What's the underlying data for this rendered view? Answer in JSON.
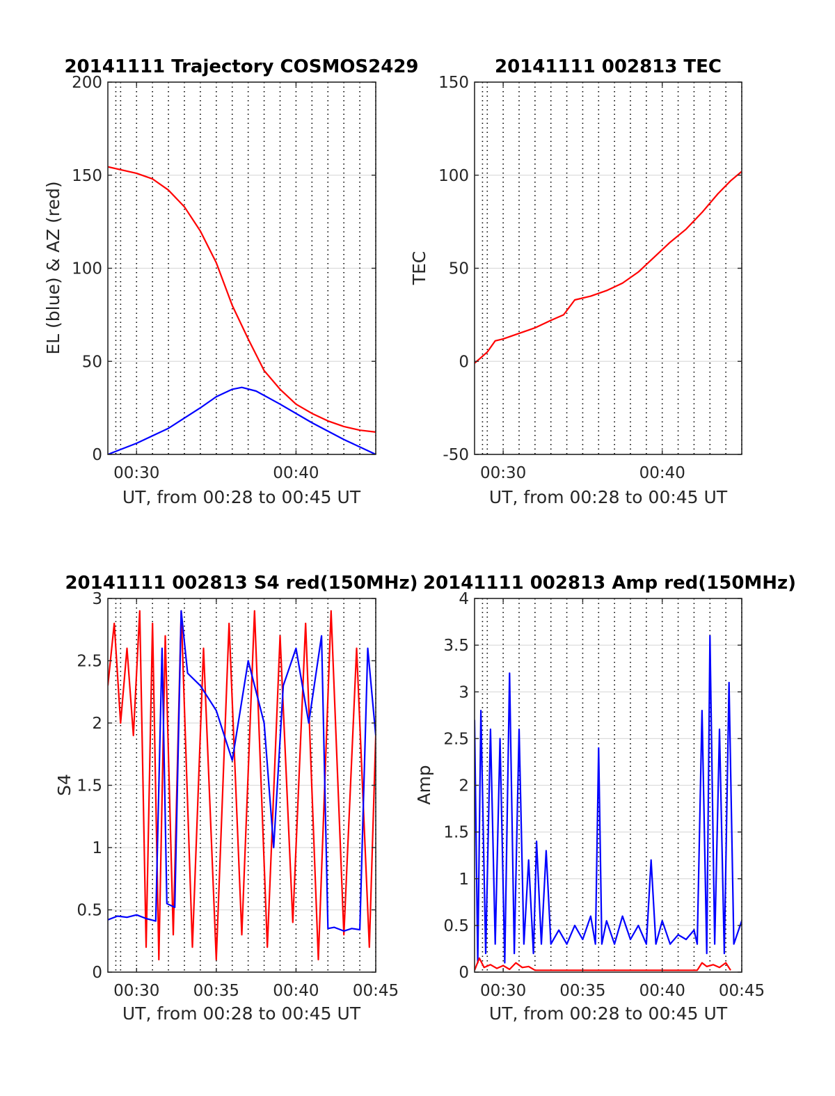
{
  "colors": {
    "blue": "#0000ff",
    "red": "#ff0000",
    "axis": "#262626",
    "grid": "#dcdcdc"
  },
  "chart_data": [
    {
      "type": "line",
      "title": "20141111 Trajectory COSMOS2429",
      "xlabel": "UT, from 00:28 to 00:45 UT",
      "ylabel": "EL (blue) & AZ (red)",
      "xlim": [
        28.2,
        45.0
      ],
      "ylim": [
        0,
        200
      ],
      "xticks": [
        30,
        40
      ],
      "xticklabels": [
        "00:30",
        "00:40"
      ],
      "yticks": [
        0,
        50,
        100,
        150,
        200
      ],
      "yticklabels": [
        "0",
        "50",
        "100",
        "150",
        "200"
      ],
      "grid": "on",
      "series": [
        {
          "color": "blue",
          "x": [
            28.2,
            30,
            32,
            34,
            35,
            36,
            36.6,
            37.5,
            39,
            41,
            43,
            45
          ],
          "values": [
            0,
            6,
            14,
            25,
            31,
            35,
            36,
            34,
            27,
            17,
            8,
            0
          ]
        },
        {
          "color": "red",
          "x": [
            28.2,
            30,
            31,
            32,
            33,
            34,
            35,
            36,
            37,
            38,
            39,
            40,
            41,
            42,
            43,
            44,
            45
          ],
          "values": [
            154.5,
            151,
            148,
            142,
            133,
            120,
            103,
            80,
            62,
            45,
            35,
            27,
            22,
            18,
            15,
            13,
            12
          ]
        }
      ]
    },
    {
      "type": "line",
      "title": "20141111 002813 TEC",
      "xlabel": "UT, from 00:28 to 00:45 UT",
      "ylabel": "TEC",
      "xlim": [
        28.2,
        45.0
      ],
      "ylim": [
        -50,
        150
      ],
      "xticks": [
        30,
        40
      ],
      "xticklabels": [
        "00:30",
        "00:40"
      ],
      "yticks": [
        -50,
        0,
        50,
        100,
        150
      ],
      "yticklabels": [
        "-50",
        "0",
        "50",
        "100",
        "150"
      ],
      "grid": "on",
      "series": [
        {
          "color": "red",
          "x": [
            28.2,
            29,
            29.5,
            30,
            31,
            32,
            33,
            33.8,
            34.5,
            35.5,
            36.5,
            37.5,
            38.5,
            39.5,
            40.5,
            41.5,
            42.5,
            43.5,
            44.3,
            45
          ],
          "values": [
            -1,
            5,
            11,
            12,
            15,
            18,
            22,
            25,
            33,
            35,
            38,
            42,
            48,
            56,
            64,
            71,
            80,
            90,
            97,
            102
          ]
        }
      ]
    },
    {
      "type": "line",
      "title": "20141111 002813 S4 red(150MHz)",
      "xlabel": "UT, from 00:28 to 00:45 UT",
      "ylabel": "S4",
      "xlim": [
        28.2,
        45.0
      ],
      "ylim": [
        0,
        3
      ],
      "xticks": [
        30,
        35,
        40,
        45
      ],
      "xticklabels": [
        "00:30",
        "00:35",
        "00:40",
        "00:45"
      ],
      "yticks": [
        0,
        0.5,
        1,
        1.5,
        2,
        2.5,
        3
      ],
      "yticklabels": [
        "0",
        "0.5",
        "1",
        "1.5",
        "2",
        "2.5",
        "3"
      ],
      "grid": "on",
      "series": [
        {
          "color": "red",
          "x": [
            28.2,
            28.6,
            29,
            29.4,
            29.8,
            30.2,
            30.6,
            31,
            31.4,
            31.8,
            32.3,
            32.8,
            33.5,
            34.2,
            35,
            35.8,
            36.6,
            37.4,
            38.2,
            39,
            39.8,
            40.6,
            41.4,
            42.2,
            43,
            43.8,
            44.6,
            45
          ],
          "values": [
            2.3,
            2.8,
            2.0,
            2.6,
            1.9,
            2.9,
            0.2,
            2.8,
            0.1,
            2.7,
            0.3,
            2.9,
            0.2,
            2.6,
            0.1,
            2.8,
            0.3,
            2.9,
            0.2,
            2.7,
            0.4,
            2.8,
            0.1,
            2.9,
            0.3,
            2.6,
            0.2,
            1.9
          ]
        },
        {
          "color": "blue",
          "x": [
            28.2,
            28.8,
            29.4,
            30,
            30.6,
            31.2,
            31.6,
            31.9,
            32.4,
            32.8,
            33.2,
            34,
            35,
            36,
            37,
            38,
            38.6,
            39.2,
            40,
            40.8,
            41.6,
            42,
            42.4,
            43,
            43.5,
            44,
            44.5,
            45
          ],
          "values": [
            0.42,
            0.45,
            0.44,
            0.46,
            0.43,
            0.41,
            2.6,
            0.55,
            0.52,
            2.9,
            2.4,
            2.3,
            2.1,
            1.7,
            2.5,
            2.0,
            1.0,
            2.3,
            2.6,
            2.0,
            2.7,
            0.35,
            0.36,
            0.33,
            0.35,
            0.34,
            2.6,
            1.9
          ]
        }
      ]
    },
    {
      "type": "line",
      "title": "20141111 002813 Amp red(150MHz)",
      "xlabel": "UT, from 00:28 to 00:45 UT",
      "ylabel": "Amp",
      "xlim": [
        28.2,
        45.0
      ],
      "ylim": [
        0,
        4
      ],
      "xticks": [
        30,
        35,
        40,
        45
      ],
      "xticklabels": [
        "00:30",
        "00:35",
        "00:40",
        "00:45"
      ],
      "yticks": [
        0,
        0.5,
        1,
        1.5,
        2,
        2.5,
        3,
        3.5,
        4
      ],
      "yticklabels": [
        "0",
        "0.5",
        "1",
        "1.5",
        "2",
        "2.5",
        "3",
        "3.5",
        "4"
      ],
      "grid": "on",
      "series": [
        {
          "color": "blue",
          "x": [
            28.2,
            28.4,
            28.6,
            28.9,
            29.2,
            29.5,
            29.8,
            30.1,
            30.4,
            30.7,
            31.0,
            31.3,
            31.6,
            31.9,
            32.1,
            32.4,
            32.7,
            33.0,
            33.5,
            34.0,
            34.5,
            35.0,
            35.5,
            35.8,
            36.0,
            36.2,
            36.5,
            37.0,
            37.5,
            38.0,
            38.5,
            39.0,
            39.3,
            39.6,
            40.0,
            40.5,
            41.0,
            41.5,
            42.0,
            42.2,
            42.5,
            42.8,
            43.0,
            43.3,
            43.6,
            43.9,
            44.2,
            44.5,
            45.0
          ],
          "values": [
            2.7,
            0.1,
            2.8,
            0.2,
            2.6,
            0.3,
            2.5,
            0.1,
            3.2,
            0.2,
            2.6,
            0.3,
            1.2,
            0.2,
            1.4,
            0.3,
            1.3,
            0.3,
            0.45,
            0.3,
            0.5,
            0.35,
            0.6,
            0.3,
            2.4,
            0.3,
            0.55,
            0.3,
            0.6,
            0.35,
            0.5,
            0.3,
            1.2,
            0.3,
            0.55,
            0.3,
            0.4,
            0.35,
            0.45,
            0.3,
            2.8,
            0.2,
            3.6,
            0.3,
            2.6,
            0.2,
            3.1,
            0.3,
            0.55
          ]
        },
        {
          "color": "red",
          "x": [
            28.2,
            28.5,
            28.8,
            29.2,
            29.6,
            30.0,
            30.4,
            30.8,
            31.2,
            31.6,
            32.0,
            42.2,
            42.5,
            42.8,
            43.2,
            43.6,
            44.0,
            44.3
          ],
          "values": [
            0.02,
            0.15,
            0.05,
            0.08,
            0.04,
            0.07,
            0.03,
            0.1,
            0.05,
            0.06,
            0.02,
            0.02,
            0.1,
            0.06,
            0.08,
            0.05,
            0.1,
            0.02
          ]
        }
      ]
    }
  ]
}
